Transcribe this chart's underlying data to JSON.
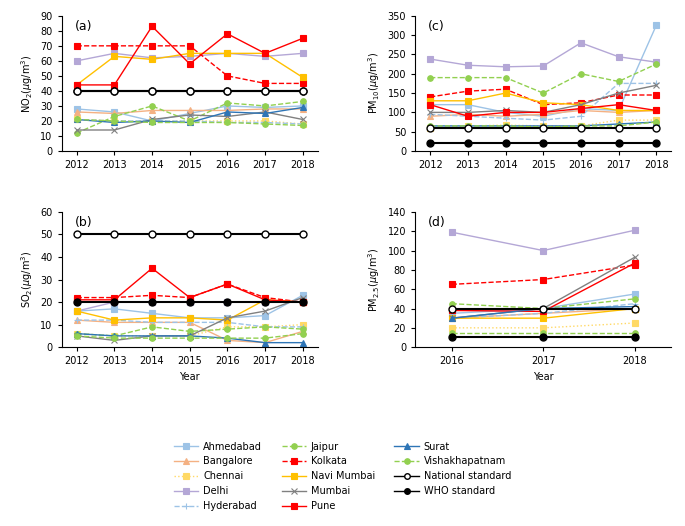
{
  "years_7": [
    2012,
    2013,
    2014,
    2015,
    2016,
    2017,
    2018
  ],
  "years_3": [
    2016,
    2017,
    2018
  ],
  "city_colors": {
    "Ahmedabad": "#9dc3e6",
    "Bangalore": "#f4b183",
    "Chennai": "#ffd966",
    "Delhi": "#b4a7d6",
    "Hyderabad": "#9dc3e6",
    "Jaipur": "#92d050",
    "Kolkata": "#ff0000",
    "Navi Mumbai": "#ffc000",
    "Mumbai": "#808080",
    "Pune": "#ff0000",
    "Surat": "#2e75b6",
    "Vishakhapatnam": "#92d050"
  },
  "city_styles": {
    "Ahmedabad": {
      "ls": "-",
      "marker": "s"
    },
    "Bangalore": {
      "ls": "-",
      "marker": "^"
    },
    "Chennai": {
      "ls": ":",
      "marker": "s"
    },
    "Delhi": {
      "ls": "-",
      "marker": "s"
    },
    "Hyderabad": {
      "ls": "--",
      "marker": "+"
    },
    "Jaipur": {
      "ls": "--",
      "marker": "o"
    },
    "Kolkata": {
      "ls": "--",
      "marker": "s"
    },
    "Navi Mumbai": {
      "ls": "-",
      "marker": "s"
    },
    "Mumbai": {
      "ls": "-",
      "marker": "x"
    },
    "Pune": {
      "ls": "-",
      "marker": "s"
    },
    "Surat": {
      "ls": "-",
      "marker": "^"
    },
    "Vishakhapatnam": {
      "ls": "--",
      "marker": "o"
    }
  },
  "NO2": {
    "Ahmedabad": [
      28,
      26,
      20,
      25,
      30,
      29,
      30
    ],
    "Bangalore": [
      26,
      25,
      27,
      27,
      27,
      28,
      28
    ],
    "Chennai": [
      21,
      20,
      20,
      20,
      20,
      20,
      18
    ],
    "Delhi": [
      60,
      65,
      62,
      63,
      65,
      63,
      65
    ],
    "Hyderabad": [
      21,
      20,
      20,
      20,
      19,
      19,
      18
    ],
    "Jaipur": [
      12,
      23,
      30,
      20,
      32,
      30,
      33
    ],
    "Kolkata": [
      70,
      70,
      70,
      70,
      50,
      45,
      45
    ],
    "Navi Mumbai": [
      44,
      63,
      61,
      65,
      65,
      65,
      49
    ],
    "Mumbai": [
      14,
      14,
      21,
      24,
      23,
      26,
      21
    ],
    "Pune": [
      44,
      44,
      83,
      58,
      78,
      65,
      75
    ],
    "Surat": [
      21,
      19,
      20,
      19,
      26,
      25,
      29
    ],
    "Vishakhapatnam": [
      21,
      20,
      19,
      19,
      19,
      18,
      17
    ]
  },
  "SO2": {
    "Ahmedabad": [
      16,
      17,
      15,
      13,
      13,
      14,
      23
    ],
    "Bangalore": [
      12,
      11,
      11,
      11,
      3,
      2,
      7
    ],
    "Chennai": [
      6,
      5,
      5,
      5,
      9,
      9,
      10
    ],
    "Delhi": [
      16,
      20,
      20,
      20,
      20,
      20,
      20
    ],
    "Hyderabad": [
      12,
      12,
      11,
      11,
      11,
      9,
      9
    ],
    "Jaipur": [
      6,
      5,
      9,
      7,
      8,
      9,
      8
    ],
    "Kolkata": [
      22,
      22,
      23,
      22,
      28,
      22,
      20
    ],
    "Navi Mumbai": [
      16,
      12,
      13,
      13,
      12,
      21,
      20
    ],
    "Mumbai": [
      5,
      3,
      5,
      5,
      13,
      16,
      22
    ],
    "Pune": [
      21,
      21,
      35,
      22,
      28,
      21,
      20
    ],
    "Surat": [
      6,
      5,
      5,
      5,
      4,
      2,
      2
    ],
    "Vishakhapatnam": [
      5,
      4,
      4,
      4,
      4,
      4,
      6
    ]
  },
  "PM10": {
    "Ahmedabad": [
      120,
      120,
      100,
      90,
      110,
      105,
      325
    ],
    "Bangalore": [
      90,
      95,
      90,
      95,
      105,
      100,
      105
    ],
    "Chennai": [
      60,
      65,
      67,
      65,
      65,
      80,
      80
    ],
    "Delhi": [
      238,
      222,
      218,
      220,
      280,
      244,
      230
    ],
    "Hyderabad": [
      95,
      90,
      85,
      80,
      90,
      175,
      175
    ],
    "Jaipur": [
      190,
      190,
      190,
      150,
      200,
      180,
      225
    ],
    "Kolkata": [
      140,
      155,
      160,
      120,
      125,
      145,
      145
    ],
    "Navi Mumbai": [
      130,
      130,
      150,
      125,
      120,
      105,
      105
    ],
    "Mumbai": [
      100,
      100,
      105,
      100,
      120,
      150,
      170
    ],
    "Pune": [
      120,
      90,
      100,
      100,
      110,
      120,
      105
    ],
    "Surat": [
      65,
      65,
      65,
      65,
      65,
      70,
      75
    ],
    "Vishakhapatnam": [
      65,
      65,
      65,
      62,
      65,
      65,
      75
    ]
  },
  "PM25": {
    "Ahmedabad": [
      35,
      40,
      55
    ],
    "Bangalore": [
      30,
      35,
      40
    ],
    "Chennai": [
      20,
      20,
      25
    ],
    "Delhi": [
      119,
      100,
      121
    ],
    "Hyderabad": [
      30,
      35,
      45
    ],
    "Jaipur": [
      45,
      40,
      50
    ],
    "Kolkata": [
      65,
      70,
      85
    ],
    "Navi Mumbai": [
      30,
      30,
      40
    ],
    "Mumbai": [
      30,
      40,
      93
    ],
    "Pune": [
      38,
      37,
      87
    ],
    "Surat": [
      30,
      40,
      42
    ],
    "Vishakhapatnam": [
      15,
      15,
      15
    ]
  },
  "national_NO2": 40,
  "who_NO2": 40,
  "national_SO2": 50,
  "who_SO2": 20,
  "national_PM10": 60,
  "who_PM10": 20,
  "national_PM25": 40,
  "who_PM25": 10,
  "legend_order": [
    [
      "Ahmedabad",
      "#9dc3e6",
      "-",
      "s",
      false
    ],
    [
      "Bangalore",
      "#f4b183",
      "-",
      "^",
      false
    ],
    [
      "Chennai",
      "#ffd966",
      ":",
      "s",
      false
    ],
    [
      "Delhi",
      "#b4a7d6",
      "-",
      "s",
      false
    ],
    [
      "Hyderabad",
      "#9dc3e6",
      "--",
      "+",
      true
    ],
    [
      "Jaipur",
      "#92d050",
      "--",
      "o",
      true
    ],
    [
      "Kolkata",
      "#ff0000",
      "--",
      "s",
      true
    ],
    [
      "Navi Mumbai",
      "#ffc000",
      "-",
      "s",
      false
    ],
    [
      "Mumbai",
      "#808080",
      "-",
      "x",
      false
    ],
    [
      "Pune",
      "#ff0000",
      "-",
      "s",
      false
    ],
    [
      "Surat",
      "#2e75b6",
      "-",
      "^",
      false
    ],
    [
      "Vishakhapatnam",
      "#92d050",
      "--",
      "o",
      true
    ],
    [
      "National standard",
      "black",
      "-",
      "o",
      false
    ],
    [
      "WHO standard",
      "black",
      "-",
      "o",
      false
    ]
  ]
}
